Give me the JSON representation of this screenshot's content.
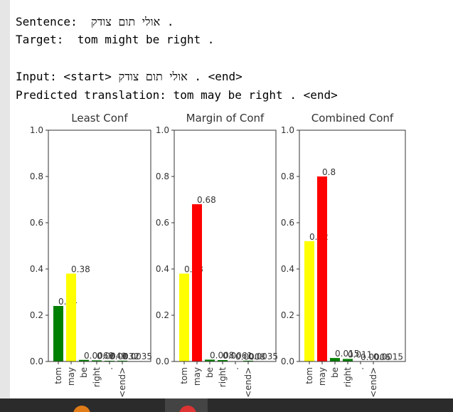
{
  "output": {
    "lines": [
      "Sentence:  אולי תום צודק .",
      "Target:  tom might be right .",
      "Input: <start> אולי תום צודק . <end>",
      "Predicted translation: tom may be right . <end>"
    ]
  },
  "chart_data": [
    {
      "type": "bar",
      "title": "Least Conf",
      "categories": [
        "tom",
        "may",
        "be",
        "right",
        ".",
        "<end>"
      ],
      "values": [
        0.24,
        0.38,
        0.0069,
        0.0049,
        0.0032,
        0.0035
      ],
      "colors": [
        "#008000",
        "#ffff00",
        "#008000",
        "#008000",
        "#008000",
        "#008000"
      ],
      "ylim": [
        0,
        1
      ],
      "yticks": [
        {
          "value": 0,
          "label": "0.0"
        },
        0.2,
        0.4,
        0.6,
        0.8,
        {
          "value": 1,
          "label": "1.0"
        }
      ]
    },
    {
      "type": "bar",
      "title": "Margin of Conf",
      "categories": [
        "tom",
        "may",
        "be",
        "right",
        ".",
        "<end>"
      ],
      "values": [
        0.38,
        0.68,
        0.008,
        0.0061,
        0.0008,
        0.0035
      ],
      "colors": [
        "#ffff00",
        "#ff0000",
        "#008000",
        "#008000",
        "#008000",
        "#008000"
      ],
      "ylim": [
        0,
        1
      ],
      "yticks": [
        {
          "value": 0,
          "label": "0.0"
        },
        0.2,
        0.4,
        0.6,
        0.8,
        {
          "value": 1,
          "label": "1.0"
        }
      ]
    },
    {
      "type": "bar",
      "title": "Combined Conf",
      "categories": [
        "tom",
        "may",
        "be",
        "right",
        ".",
        "<end>"
      ],
      "values": [
        0.52,
        0.8,
        0.015,
        0.011,
        0.0006,
        0.0015
      ],
      "colors": [
        "#ffff00",
        "#ff0000",
        "#008000",
        "#008000",
        "#008000",
        "#008000"
      ],
      "ylim": [
        0,
        1
      ],
      "yticks": [
        {
          "value": 0,
          "label": "0.0"
        },
        0.2,
        0.4,
        0.6,
        0.8,
        {
          "value": 1,
          "label": "1.0"
        }
      ]
    }
  ]
}
